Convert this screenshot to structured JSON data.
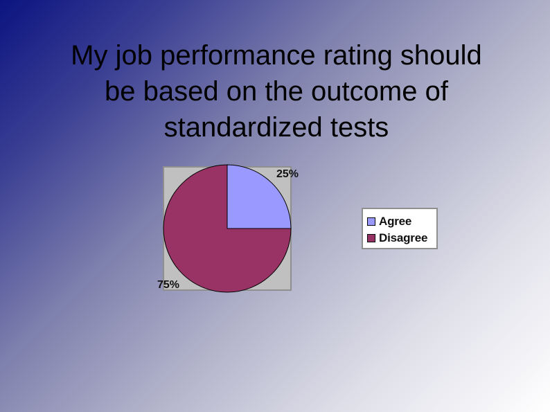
{
  "slide": {
    "title": "My job performance rating should\nbe based on the outcome of\nstandardized tests"
  },
  "chart_data": {
    "type": "pie",
    "title": "",
    "categories": [
      "Agree",
      "Disagree"
    ],
    "values": [
      25,
      75
    ],
    "labels": [
      "25%",
      "75%"
    ],
    "colors": [
      "#9999ff",
      "#993366"
    ],
    "plot_background": "#c0c0c0",
    "legend_position": "right"
  }
}
